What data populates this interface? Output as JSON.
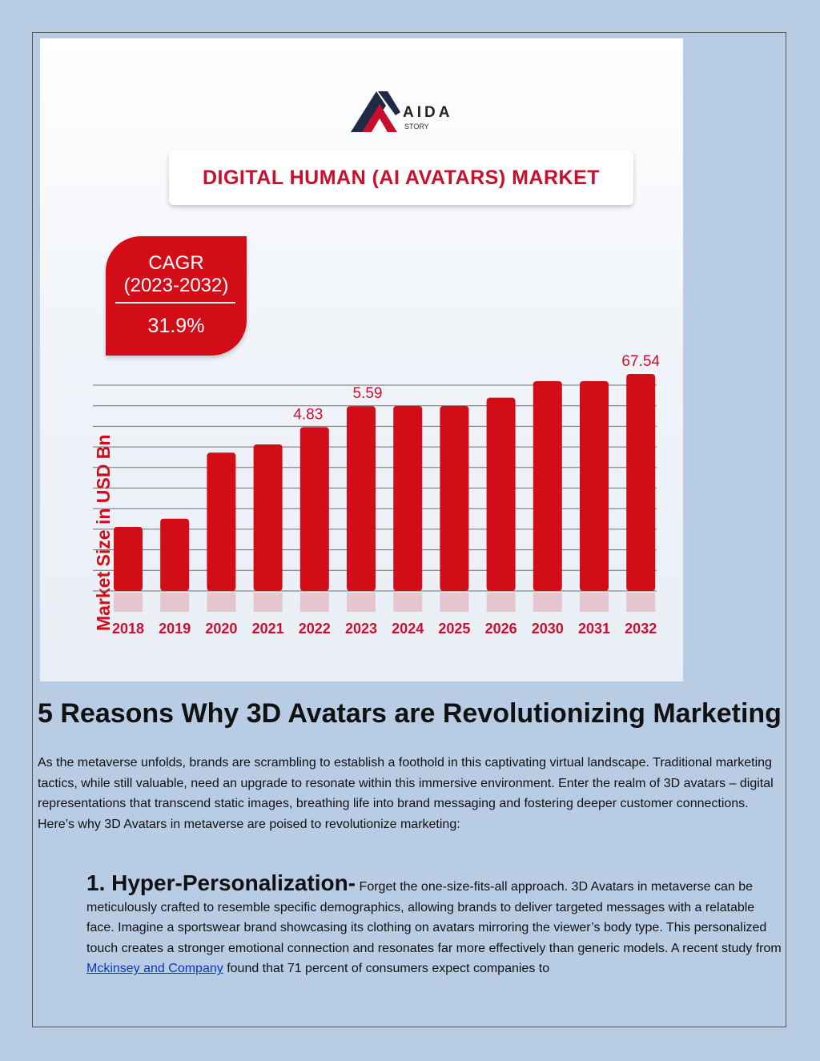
{
  "figure": {
    "logo": {
      "word": "AIDA",
      "sub": "STORY"
    },
    "title": "DIGITAL HUMAN (AI AVATARS) MARKET",
    "cagr": {
      "line1": "CAGR",
      "line2": "(2023-2032)",
      "value": "31.9%"
    },
    "colors": {
      "bar": "#d30d18",
      "title": "#c8102e",
      "badge": "#d30d18"
    }
  },
  "chart_data": {
    "type": "bar",
    "ylabel": "Market Size in USD Bn",
    "categories": [
      "2018",
      "2019",
      "2020",
      "2021",
      "2022",
      "2023",
      "2024",
      "2025",
      "2026",
      "2030",
      "2031",
      "2032"
    ],
    "values": [
      1.2,
      1.5,
      3.9,
      4.2,
      4.83,
      5.59,
      5.6,
      5.6,
      5.9,
      6.5,
      6.5,
      67.54
    ],
    "data_labels": {
      "4": "4.83",
      "5": "5.59",
      "11": "67.54"
    },
    "grid": true
  },
  "article": {
    "heading": "5 Reasons Why 3D Avatars are Revolutionizing Marketing",
    "intro": "As the metaverse unfolds, brands are scrambling to establish a foothold in this captivating virtual landscape. Traditional marketing tactics, while still valuable, need an upgrade to resonate within this immersive environment. Enter the realm of 3D avatars – digital representations that transcend static images, breathing life into brand messaging and fostering deeper customer connections. Here’s why 3D Avatars in metaverse are poised to revolutionize marketing:",
    "item1": {
      "title": "1. Hyper-Personalization-",
      "text_before_link": " Forget the one-size-fits-all approach. 3D Avatars in metaverse can be meticulously crafted to resemble specific demographics, allowing brands to deliver targeted messages with a relatable face. Imagine a sportswear brand showcasing its clothing on avatars mirroring the viewer’s body type. This personalized touch creates a stronger emotional connection and resonates far more effectively than generic models. A recent study from ",
      "link": "Mckinsey and Company",
      "text_after_link": " found that 71 percent of consumers expect companies to"
    }
  }
}
